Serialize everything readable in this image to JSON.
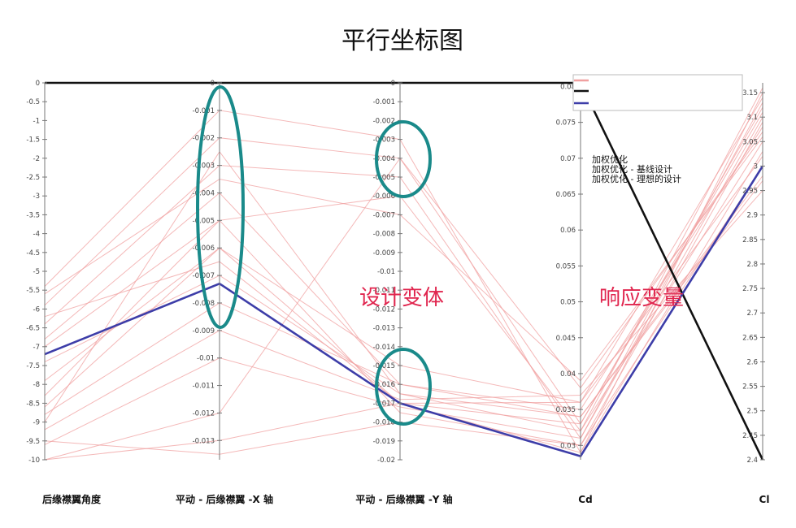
{
  "chart_data": {
    "type": "parallel_coordinates",
    "title": "平行坐标图",
    "axes": [
      {
        "label": "后缘襟翼角度",
        "range": [
          -10,
          0
        ],
        "ticks": [
          "0",
          "-0.5",
          "-1",
          "-1.5",
          "-2",
          "-2.5",
          "-3",
          "-3.5",
          "-4",
          "-4.5",
          "-5",
          "-5.5",
          "-6",
          "-6.5",
          "-7",
          "-7.5",
          "-8",
          "-8.5",
          "-9",
          "-9.5",
          "-10"
        ]
      },
      {
        "label": "平动 - 后缘襟翼 -X 轴",
        "range": [
          -0.0137,
          0
        ],
        "ticks": [
          "0",
          "-0.001",
          "-0.002",
          "-0.003",
          "-0.004",
          "-0.005",
          "-0.006",
          "-0.007",
          "-0.008",
          "-0.009",
          "-0.01",
          "-0.011",
          "-0.012",
          "-0.013"
        ]
      },
      {
        "label": "平动 - 后缘襟翼 -Y 轴",
        "range": [
          -0.02,
          0
        ],
        "ticks": [
          "0",
          "-0.001",
          "-0.002",
          "-0.003",
          "-0.004",
          "-0.005",
          "-0.006",
          "-0.007",
          "-0.008",
          "-0.009",
          "-0.01",
          "-0.011",
          "-0.012",
          "-0.013",
          "-0.014",
          "-0.015",
          "-0.016",
          "-0.017",
          "-0.018",
          "-0.019",
          "-0.02"
        ]
      },
      {
        "label": "Cd",
        "range": [
          0.028,
          0.0805
        ],
        "ticks": [
          "0.08",
          "0.075",
          "0.07",
          "0.065",
          "0.06",
          "0.055",
          "0.05",
          "0.045",
          "0.04",
          "0.035",
          "0.03"
        ]
      },
      {
        "label": "Cl",
        "range": [
          2.4,
          3.17
        ],
        "ticks": [
          "3.15",
          "3.1",
          "3.05",
          "3",
          "2.95",
          "2.9",
          "2.85",
          "2.8",
          "2.75",
          "2.7",
          "2.65",
          "2.6",
          "2.55",
          "2.5",
          "2.45",
          "2.4"
        ]
      }
    ],
    "series": [
      {
        "name": "加权优化",
        "color": "#f0a0a0",
        "lines": [
          [
            -5.4,
            -0.001,
            -0.003,
            0.029,
            3.15
          ],
          [
            -5.9,
            -0.002,
            -0.004,
            0.033,
            3.12
          ],
          [
            -6.4,
            -0.003,
            -0.005,
            0.031,
            3.1
          ],
          [
            -6.8,
            -0.004,
            -0.016,
            0.035,
            3.08
          ],
          [
            -7.4,
            -0.007,
            -0.0165,
            0.032,
            3.05
          ],
          [
            -7.9,
            -0.006,
            -0.017,
            0.036,
            3.02
          ],
          [
            -8.3,
            -0.005,
            -0.0175,
            0.03,
            3.0
          ],
          [
            -8.8,
            -0.008,
            -0.016,
            0.034,
            2.97
          ],
          [
            -9.2,
            -0.009,
            -0.0168,
            0.037,
            2.95
          ],
          [
            -9.6,
            -0.01,
            -0.0172,
            0.031,
            3.13
          ],
          [
            -10.0,
            -0.013,
            -0.017,
            0.033,
            3.11
          ],
          [
            -10.0,
            -0.012,
            -0.004,
            0.038,
            3.07
          ],
          [
            -9.5,
            -0.0135,
            -0.018,
            0.03,
            3.09
          ],
          [
            -8.6,
            -0.006,
            -0.015,
            0.036,
            3.14
          ],
          [
            -7.0,
            -0.005,
            -0.006,
            0.032,
            3.16
          ],
          [
            -6.2,
            -0.0065,
            -0.017,
            0.029,
            3.03
          ],
          [
            -5.6,
            -0.0035,
            -0.007,
            0.039,
            3.06
          ],
          [
            -9.0,
            -0.0025,
            -0.0165,
            0.034,
            2.98
          ]
        ]
      },
      {
        "name": "加权优化 - 基线设计",
        "color": "#111111",
        "lines": [
          [
            0,
            0,
            0,
            0.0805,
            2.4
          ]
        ]
      },
      {
        "name": "加权优化 - 理想的设计",
        "color": "#3d3da8",
        "lines": [
          [
            -7.2,
            -0.0073,
            -0.017,
            0.0285,
            3.0
          ]
        ]
      }
    ],
    "annotations": [
      "设计变体",
      "响应变量"
    ]
  }
}
